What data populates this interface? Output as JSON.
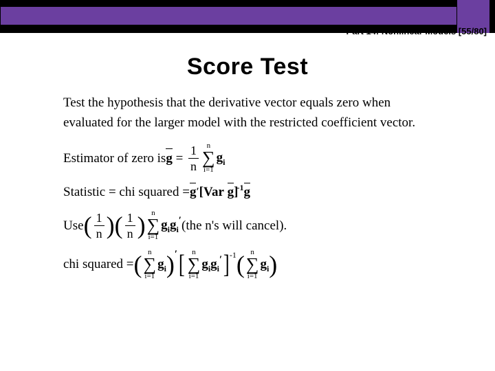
{
  "header": {
    "label": "Part 14: Nonlinear Models [55/80]",
    "bar_color": "#000000",
    "band_color": "#6b3fa0"
  },
  "title": "Score Test",
  "content": {
    "paragraph": "Test the hypothesis that the derivative vector equals zero when evaluated for the larger model with the restricted coefficient vector.",
    "line_estimator_lead": "Estimator of zero is ",
    "line_statistic_lead": "Statistic = chi squared = ",
    "line_use_lead": "Use ",
    "line_use_tail": "  (the n's will cancel).",
    "line_chi_lead": "chi squared = ",
    "symbols": {
      "g": "g",
      "Var": "Var",
      "n": "n",
      "one": "1",
      "i_eq_1": "i=1",
      "sigma": "∑",
      "prime": "′",
      "inv": "-1"
    }
  },
  "style": {
    "title_fontsize": 34,
    "body_fontsize": 19,
    "body_font": "Times New Roman",
    "title_font": "Arial",
    "background_color": "#ffffff",
    "text_color": "#000000"
  }
}
